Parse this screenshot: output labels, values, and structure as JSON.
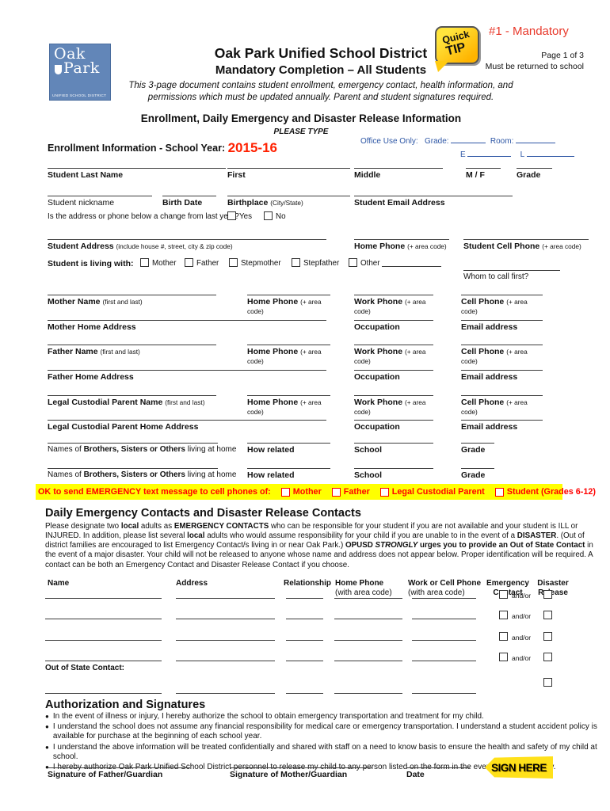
{
  "colors": {
    "accent_red": "#e8392b",
    "year_red": "#ff2000",
    "logo_blue": "#6286b8",
    "office_blue": "#2d56a5",
    "highlight_yellow": "#ffff00",
    "alert_red": "#ff0000"
  },
  "header": {
    "logo": {
      "oak": "Oak",
      "park": "Park",
      "sub": "UNIFIED SCHOOL DISTRICT"
    },
    "title": "Oak Park Unified School District",
    "subtitle": "Mandatory Completion – All Students",
    "desc1": "This 3-page document contains student enrollment, emergency contact, health information, and",
    "desc2": "permissions which must be updated annually. Parent and student signatures required.",
    "quick": "Quick",
    "tip": "TIP",
    "mandatory": "#1 - Mandatory",
    "page": "Page 1 of 3",
    "must_return": "Must be returned to school"
  },
  "enrollment": {
    "section_title": "Enrollment, Daily Emergency and Disaster Release Information",
    "please_type": "PLEASE TYPE",
    "info_label": "Enrollment Information - School Year:",
    "school_year": "2015-16",
    "office": {
      "label": "Office Use Only:",
      "grade": "Grade:",
      "room": "Room:",
      "e": "E",
      "l": "L"
    }
  },
  "fields": {
    "student_last_name": "Student Last Name",
    "first": "First",
    "middle": "Middle",
    "mf": "M  /  F",
    "grade": "Grade",
    "nickname": "Student nickname",
    "birth_date": "Birth Date",
    "birthplace": "Birthplace",
    "birthplace_note": "(City/State)",
    "student_email": "Student Email Address",
    "change_question": "Is the address or phone below a change from last year?",
    "yes": "Yes",
    "no": "No",
    "student_address": "Student Address",
    "student_address_note": "(include house #, street, city & zip code)",
    "home_phone": "Home Phone",
    "area_note": "(+ area code)",
    "student_cell": "Student Cell Phone",
    "living_with": "Student is living with:",
    "mother": "Mother",
    "father": "Father",
    "stepmother": "Stepmother",
    "stepfather": "Stepfather",
    "other": "Other",
    "whom_to_call": "Whom to call first?",
    "mother_name": "Mother Name",
    "first_last": "(first and last)",
    "work_phone": "Work Phone",
    "cell_phone": "Cell Phone",
    "mother_home_address": "Mother Home Address",
    "occupation": "Occupation",
    "email_address": "Email address",
    "father_name": "Father Name",
    "father_home_address": "Father Home Address",
    "legal_name": "Legal Custodial Parent Name",
    "legal_home_address": "Legal Custodial Parent Home Address",
    "siblings_prefix": "Names of",
    "siblings_bold": "Brothers, Sisters or Others",
    "siblings_suffix": "living at home",
    "how_related": "How related",
    "school": "School",
    "sib_grade": "Grade"
  },
  "emergency_bar": {
    "label": "OK to send EMERGENCY text message to cell phones of:",
    "options": [
      "Mother",
      "Father",
      "Legal Custodial Parent",
      "Student (Grades 6-12)"
    ]
  },
  "contacts": {
    "title": "Daily Emergency Contacts and Disaster Release Contacts",
    "intro_segments": [
      {
        "t": "Please designate two "
      },
      {
        "t": "local",
        "b": 1
      },
      {
        "t": " adults as "
      },
      {
        "t": "EMERGENCY CONTACTS",
        "b": 1
      },
      {
        "t": " who can be responsible for your student if you are not available and your student is ILL or INJURED. In addition, please list several "
      },
      {
        "t": "local",
        "b": 1
      },
      {
        "t": " adults who would assume responsibility for your child if you are unable to in the event of a "
      },
      {
        "t": "DISASTER",
        "b": 1
      },
      {
        "t": ". (Out of district families are encouraged to list Emergency Contact/s living in or near Oak Park.) "
      },
      {
        "t": "OPUSD ",
        "b": 1
      },
      {
        "t": "STRONGLY",
        "b": 1,
        "i": 1
      },
      {
        "t": " urges you to provide an Out of State Contact",
        "b": 1
      },
      {
        "t": " in the event of a major disaster. Your child will not be released to anyone whose name and address does not appear below. Proper identification will be required. A contact can be both an Emergency Contact and Disaster Release Contact if you choose."
      }
    ],
    "col_name": "Name",
    "col_address": "Address",
    "col_relationship": "Relationship",
    "col_home1": "Home Phone",
    "col_home2": "(with area code)",
    "col_work1": "Work or Cell Phone",
    "col_work2": "(with area code)",
    "col_em1": "Emergency",
    "col_em2": "Contact",
    "col_dis1": "Disaster",
    "col_dis2": "Release",
    "andor": "and/or",
    "out_of_state": "Out of State Contact:"
  },
  "authorization": {
    "title": "Authorization and Signatures",
    "bullets": [
      "In the event of illness or injury, I hereby authorize the school to obtain emergency transportation and treatment for my child.",
      "I understand the school does not assume any financial responsibility for medical care or emergency transportation. I understand a student accident policy is available for purchase at the beginning of each school year.",
      "I understand the above information will be treated confidentially and shared with staff on a need to know basis to ensure the health and safety of my child at school.",
      "I hereby authorize Oak Park Unified School District personnel to release my child to any person listed on the form in the event of an emergency."
    ],
    "sig_father": "Signature of Father/Guardian",
    "sig_mother": "Signature of Mother/Guardian",
    "date_label": "Date",
    "sign_here": "SIGN HERE"
  }
}
